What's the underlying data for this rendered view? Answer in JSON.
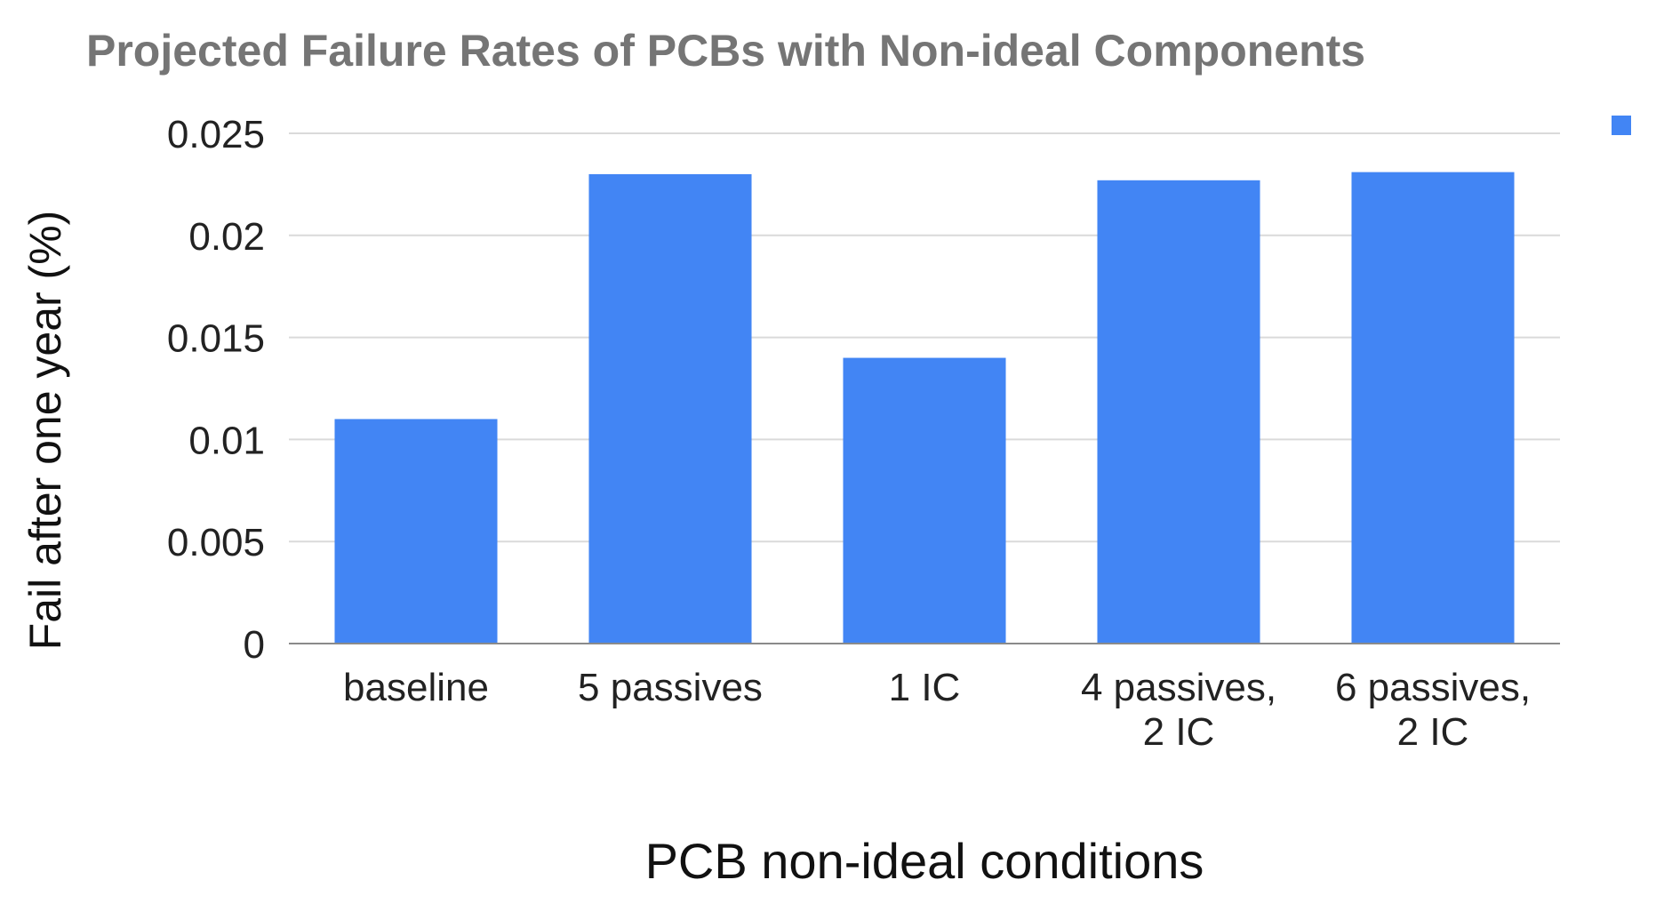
{
  "chart_data": {
    "type": "bar",
    "title": "Projected Failure Rates of PCBs with Non-ideal Components",
    "xlabel": "PCB non-ideal conditions",
    "ylabel": "Fail after one year (%)",
    "categories": [
      [
        "baseline"
      ],
      [
        "5 passives"
      ],
      [
        "1 IC"
      ],
      [
        "4 passives,",
        "2 IC"
      ],
      [
        "6 passives,",
        "2 IC"
      ]
    ],
    "values": [
      0.011,
      0.023,
      0.014,
      0.0227,
      0.0231
    ],
    "ylim": [
      0,
      0.025
    ],
    "yticks": [
      "0",
      "0.005",
      "0.01",
      "0.015",
      "0.02",
      "0.025"
    ],
    "ytick_values": [
      0,
      0.005,
      0.01,
      0.015,
      0.02,
      0.025
    ],
    "grid": true,
    "legend": "top-right",
    "colors": {
      "bar": "#4285f4",
      "grid": "#dadada",
      "baseline": "#8a8a8a"
    }
  }
}
